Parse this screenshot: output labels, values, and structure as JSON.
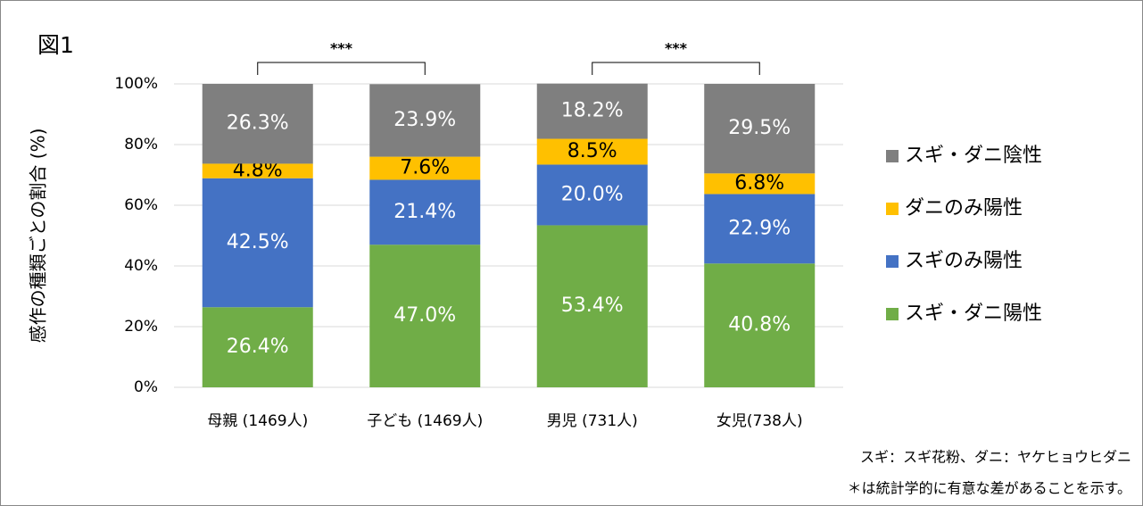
{
  "chart_data": {
    "type": "stacked_bar",
    "title": "図1",
    "ylabel": "感作の種類ごとの割合 (%)",
    "categories": [
      "母親 (1469人)",
      "子ども (1469人)",
      "男児 (731人)",
      "女児(738人)"
    ],
    "series": [
      {
        "name": "スギ・ダニ陽性",
        "color": "#70ad47",
        "label_color": "#ffffff",
        "values": [
          26.4,
          47.0,
          53.4,
          40.8
        ],
        "value_labels": [
          "26.4%",
          "47.0%",
          "53.4%",
          "40.8%"
        ]
      },
      {
        "name": "スギのみ陽性",
        "color": "#4472c4",
        "label_color": "#ffffff",
        "values": [
          42.5,
          21.4,
          20.0,
          22.9
        ],
        "value_labels": [
          "42.5%",
          "21.4%",
          "20.0%",
          "22.9%"
        ]
      },
      {
        "name": "ダニのみ陽性",
        "color": "#ffc000",
        "label_color": "#000000",
        "values": [
          4.8,
          7.6,
          8.5,
          6.8
        ],
        "value_labels": [
          "4.8%",
          "7.6%",
          "8.5%",
          "6.8%"
        ]
      },
      {
        "name": "スギ・ダニ陰性",
        "color": "#7f7f7f",
        "label_color": "#ffffff",
        "values": [
          26.3,
          23.9,
          18.2,
          29.5
        ],
        "value_labels": [
          "26.3%",
          "23.9%",
          "18.2%",
          "29.5%"
        ]
      }
    ],
    "ylim": [
      0,
      100
    ],
    "yticks": [
      {
        "value": 0,
        "label": "0%"
      },
      {
        "value": 20,
        "label": "20%"
      },
      {
        "value": 40,
        "label": "40%"
      },
      {
        "value": 60,
        "label": "60%"
      },
      {
        "value": 80,
        "label": "80%"
      },
      {
        "value": 100,
        "label": "100%"
      }
    ],
    "grid": true,
    "legend": "right",
    "significance": [
      "***",
      "***"
    ],
    "notes": [
      "スギ：スギ花粉、ダニ：ヤケヒョウヒダニ",
      "＊は統計学的に有意な差があることを示す。"
    ]
  }
}
